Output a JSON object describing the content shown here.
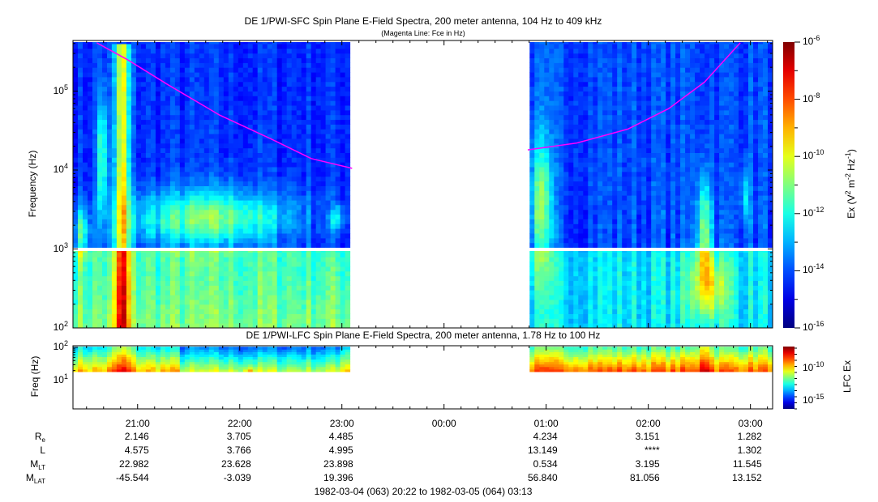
{
  "chart_data": [
    {
      "type": "heatmap",
      "title": "DE 1/PWI-SFC  Spin Plane E-Field Spectra, 200 meter antenna, 104 Hz to 409 kHz",
      "subtitle": "(Magenta Line: Fce in Hz)",
      "ylabel": "Frequency (Hz)",
      "yscale": "log",
      "ylim": [
        100,
        409000
      ],
      "yticks": [
        {
          "base": "10",
          "exp": "2"
        },
        {
          "base": "10",
          "exp": "3"
        },
        {
          "base": "10",
          "exp": "4"
        },
        {
          "base": "10",
          "exp": "5"
        }
      ],
      "colorbar": {
        "label": "Ex (V",
        "label_sup1": "2",
        "label_mid": " m",
        "label_sup2": "-2",
        "label_mid2": " Hz",
        "label_sup3": "-1",
        "label_end": ")",
        "range": [
          1e-16,
          1e-06
        ],
        "ticks": [
          {
            "base": "10",
            "exp": "-6"
          },
          {
            "base": "10",
            "exp": "-8"
          },
          {
            "base": "10",
            "exp": "-10"
          },
          {
            "base": "10",
            "exp": "-12"
          },
          {
            "base": "10",
            "exp": "-14"
          },
          {
            "base": "10",
            "exp": "-16"
          }
        ]
      },
      "data_gap_hours": [
        "23:06",
        "00:49"
      ],
      "fce_line": {
        "color": "#ff00ff",
        "points_hours_hz": [
          [
            0.6,
            409000
          ],
          [
            0.9,
            250000
          ],
          [
            1.3,
            120000
          ],
          [
            1.8,
            50000
          ],
          [
            2.3,
            25000
          ],
          [
            2.7,
            14000
          ],
          [
            3.1,
            10500
          ],
          [
            4.82,
            18000
          ],
          [
            5.3,
            22000
          ],
          [
            5.8,
            33000
          ],
          [
            6.2,
            60000
          ],
          [
            6.55,
            130000
          ],
          [
            6.9,
            409000
          ]
        ]
      }
    },
    {
      "type": "heatmap",
      "title": "DE 1/PWI-LFC  Spin Plane E-Field Spectra, 200 meter antenna, 1.78 Hz to 100 Hz",
      "ylabel": "Freq (Hz)",
      "yscale": "log",
      "ylim": [
        1.78,
        100
      ],
      "yticks": [
        {
          "base": "10",
          "exp": "2"
        },
        {
          "base": "10",
          "exp": "1"
        }
      ],
      "colorbar": {
        "label": "LFC Ex",
        "ticks": [
          {
            "base": "10",
            "exp": "-10"
          },
          {
            "base": "10",
            "exp": "-15"
          }
        ]
      }
    }
  ],
  "xaxis": {
    "ticks": [
      "21:00",
      "22:00",
      "23:00",
      "00:00",
      "01:00",
      "02:00",
      "03:00"
    ],
    "range": "1982-03-04 (063) 20:22 to 1982-03-05 (064) 03:13"
  },
  "ephemeris": {
    "rows": [
      {
        "label": "R",
        "sub": "e",
        "values": [
          "2.146",
          "3.705",
          "4.485",
          "",
          "4.234",
          "3.151",
          "1.282"
        ]
      },
      {
        "label": "L",
        "sub": "",
        "values": [
          "4.575",
          "3.766",
          "4.995",
          "",
          "13.149",
          "****",
          "1.302"
        ]
      },
      {
        "label": "M",
        "sub": "LT",
        "values": [
          "22.982",
          "23.628",
          "23.898",
          "",
          "0.534",
          "3.195",
          "11.545"
        ]
      },
      {
        "label": "M",
        "sub": "LAT",
        "values": [
          "-45.544",
          "-3.039",
          "19.396",
          "",
          "56.840",
          "81.056",
          "13.152"
        ]
      }
    ]
  }
}
